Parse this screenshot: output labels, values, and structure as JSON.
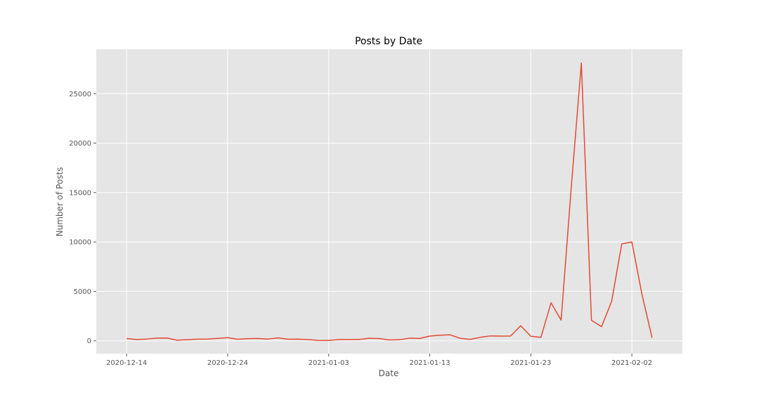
{
  "chart_data": {
    "type": "line",
    "title": "Posts by Date",
    "xlabel": "Date",
    "ylabel": "Number of Posts",
    "x_tick_labels": [
      "2020-12-14",
      "2020-12-24",
      "2021-01-03",
      "2021-01-13",
      "2021-01-23",
      "2021-02-02"
    ],
    "y_tick_labels": [
      "0",
      "5000",
      "10000",
      "15000",
      "20000",
      "25000"
    ],
    "y_ticks": [
      0,
      5000,
      10000,
      15000,
      20000,
      25000
    ],
    "xlim": [
      "2020-12-11",
      "2021-02-07"
    ],
    "ylim": [
      -1300,
      29500
    ],
    "grid": true,
    "series": [
      {
        "color": "#e24a33",
        "x": [
          "2020-12-14",
          "2020-12-15",
          "2020-12-16",
          "2020-12-17",
          "2020-12-18",
          "2020-12-19",
          "2020-12-20",
          "2020-12-21",
          "2020-12-22",
          "2020-12-23",
          "2020-12-24",
          "2020-12-25",
          "2020-12-26",
          "2020-12-27",
          "2020-12-28",
          "2020-12-29",
          "2020-12-30",
          "2020-12-31",
          "2021-01-01",
          "2021-01-02",
          "2021-01-03",
          "2021-01-04",
          "2021-01-05",
          "2021-01-06",
          "2021-01-07",
          "2021-01-08",
          "2021-01-09",
          "2021-01-10",
          "2021-01-11",
          "2021-01-12",
          "2021-01-13",
          "2021-01-14",
          "2021-01-15",
          "2021-01-16",
          "2021-01-17",
          "2021-01-18",
          "2021-01-19",
          "2021-01-20",
          "2021-01-21",
          "2021-01-22",
          "2021-01-23",
          "2021-01-24",
          "2021-01-25",
          "2021-01-26",
          "2021-01-27",
          "2021-01-28",
          "2021-01-29",
          "2021-01-30",
          "2021-01-31",
          "2021-02-01",
          "2021-02-02",
          "2021-02-03",
          "2021-02-04"
        ],
        "y": [
          230,
          130,
          180,
          270,
          280,
          60,
          110,
          170,
          180,
          250,
          320,
          160,
          220,
          240,
          180,
          300,
          160,
          170,
          120,
          40,
          30,
          130,
          130,
          140,
          260,
          230,
          90,
          110,
          270,
          240,
          480,
          570,
          610,
          260,
          150,
          350,
          500,
          480,
          490,
          1530,
          460,
          350,
          3850,
          2100,
          15500,
          28100,
          2080,
          1430,
          4000,
          9800,
          10000,
          4700,
          300
        ]
      }
    ]
  }
}
